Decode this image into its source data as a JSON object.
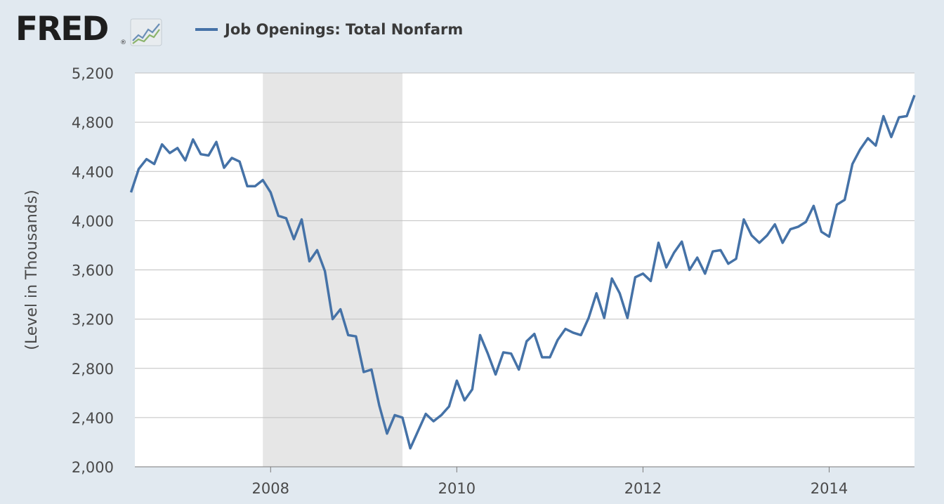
{
  "header": {
    "logo_text": "FRED",
    "logo_reg": "®",
    "logo_icon": "trend-line-chart-icon"
  },
  "colors": {
    "series": "#4572a7",
    "recession_shade": "#e6e6e6",
    "plot_bg": "#ffffff",
    "page_bg": "#e1e9f0",
    "grid": "#c0c0c0"
  },
  "chart_data": {
    "type": "line",
    "title": "",
    "xlabel": "",
    "ylabel": "(Level in Thousands)",
    "ylim": [
      2000,
      5200
    ],
    "yticks": [
      2000,
      2400,
      2800,
      3200,
      3600,
      4000,
      4400,
      4800,
      5200
    ],
    "ytick_labels": [
      "2,000",
      "2,400",
      "2,800",
      "3,200",
      "3,600",
      "4,000",
      "4,400",
      "4,800",
      "5,200"
    ],
    "xlim": [
      2006.5417,
      2014.9167
    ],
    "xticks": [
      2008,
      2010,
      2012,
      2014
    ],
    "xtick_labels": [
      "2008",
      "2010",
      "2012",
      "2014"
    ],
    "grid": true,
    "legend_position": "top",
    "shaded_regions": [
      {
        "start": 2007.9167,
        "end": 2009.4167
      }
    ],
    "series": [
      {
        "name": "Job Openings: Total Nonfarm",
        "frequency": "monthly",
        "start": "2006-07",
        "values": [
          4230,
          4420,
          4500,
          4460,
          4620,
          4550,
          4590,
          4490,
          4660,
          4540,
          4530,
          4640,
          4430,
          4510,
          4480,
          4280,
          4280,
          4330,
          4230,
          4040,
          4020,
          3850,
          4010,
          3670,
          3760,
          3590,
          3200,
          3280,
          3070,
          3060,
          2770,
          2790,
          2500,
          2270,
          2420,
          2400,
          2150,
          2290,
          2430,
          2370,
          2420,
          2490,
          2700,
          2540,
          2630,
          3070,
          2920,
          2750,
          2930,
          2920,
          2790,
          3020,
          3080,
          2890,
          2890,
          3030,
          3120,
          3090,
          3070,
          3210,
          3410,
          3210,
          3530,
          3410,
          3210,
          3540,
          3570,
          3510,
          3820,
          3620,
          3740,
          3830,
          3600,
          3700,
          3570,
          3750,
          3760,
          3650,
          3690,
          4010,
          3880,
          3820,
          3880,
          3970,
          3820,
          3930,
          3950,
          3990,
          4120,
          3910,
          3870,
          4130,
          4170,
          4460,
          4580,
          4670,
          4610,
          4850,
          4680,
          4840,
          4850,
          5020
        ]
      }
    ]
  }
}
